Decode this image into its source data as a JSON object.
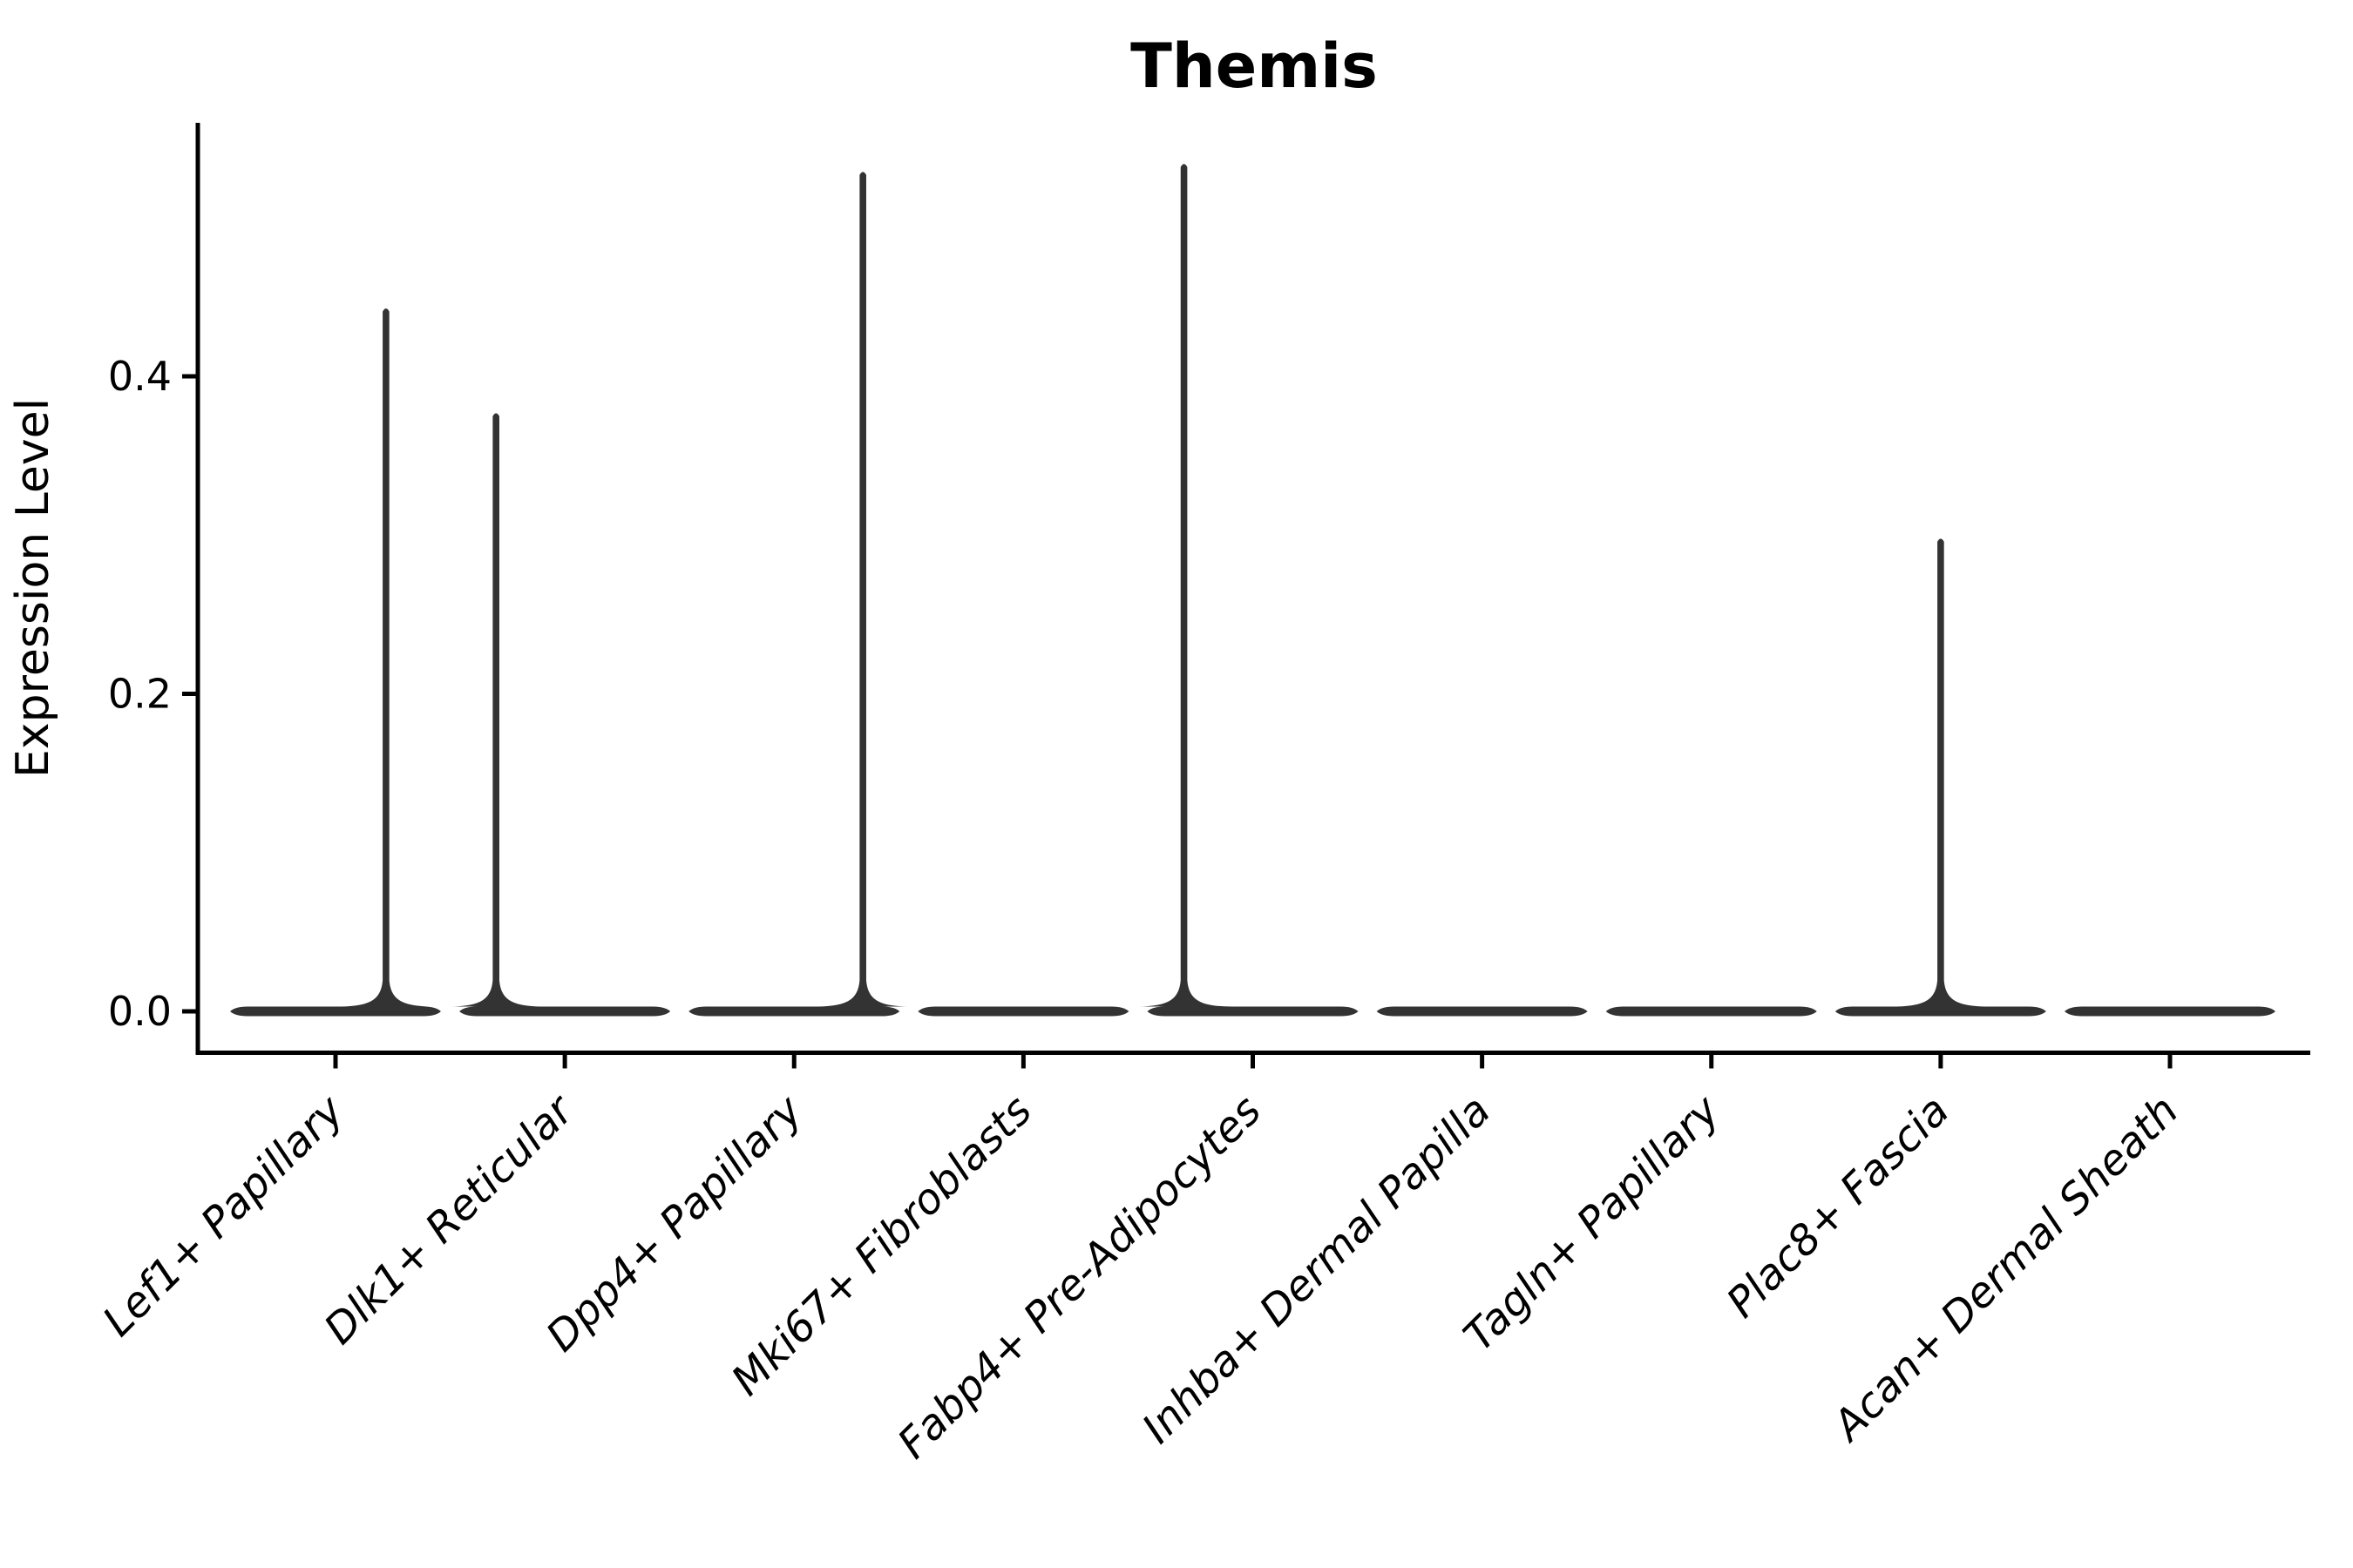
{
  "figure": {
    "title": "Themis"
  },
  "chart_data": {
    "type": "violin",
    "title": "Themis",
    "xlabel": "",
    "ylabel": "Expression Level",
    "categories": [
      "Lef1+ Papillary",
      "Dlk1+ Reticular",
      "Dpp4+ Papillary",
      "Mki67+ Fibroblasts",
      "Fabp4+ Pre-Adipocytes",
      "Inhba+ Dermal Papilla",
      "Tagln+ Papillary",
      "Plac8+ Fascia",
      "Acan+ Dermal Sheath"
    ],
    "series": [
      {
        "name": "max_expression_level",
        "values": [
          0.443,
          0.377,
          0.529,
          0,
          0.534,
          0,
          0,
          0.298,
          0
        ]
      }
    ],
    "description": "Violin plot; nearly all cells at 0 expression (flat wide bodies at baseline) with thin density spikes up to the max expressing cell in 5 of 9 clusters",
    "yticks": [
      "0.0",
      "0.2",
      "0.4"
    ],
    "ytick_values": [
      0.0,
      0.2,
      0.4
    ],
    "ylim": [
      -0.026,
      0.56
    ],
    "grid": false,
    "legend": false,
    "spike_offset_frac": [
      0.22,
      -0.3,
      0.3,
      0,
      -0.3,
      0,
      0,
      0,
      0
    ],
    "colors": {
      "violin_fill": "#333333",
      "axis": "#000000",
      "text": "#000000",
      "background": "#ffffff"
    }
  }
}
